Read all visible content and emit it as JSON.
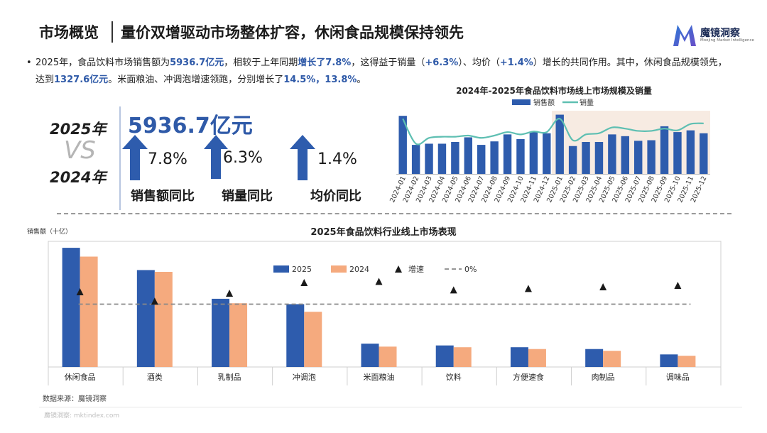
{
  "header": {
    "title": "市场概览",
    "subtitle": "量价双增驱动市场整体扩容，休闲食品规模保持领先",
    "logo_name": "魔镜洞察",
    "logo_sub": "Moojing Market Intelligence"
  },
  "summary": {
    "bullet": "•",
    "parts": [
      {
        "t": "2025年，食品饮料市场销售额为",
        "hl": false
      },
      {
        "t": "5936.7亿元",
        "hl": true
      },
      {
        "t": "，相较于上年同期",
        "hl": false
      },
      {
        "t": "增长了7.8%",
        "hl": true
      },
      {
        "t": "，这得益于销量（",
        "hl": false
      },
      {
        "t": "+6.3%",
        "hl": true
      },
      {
        "t": "）、均价（",
        "hl": false
      },
      {
        "t": "+1.4%",
        "hl": true
      },
      {
        "t": "）增长的共同作用。其中，休闲食品规模领先，达到",
        "hl": false
      },
      {
        "t": "1327.6亿元",
        "hl": true
      },
      {
        "t": "。米面粮油、冲调泡增速领跑，分别增长了",
        "hl": false
      },
      {
        "t": "14.5%，13.8%",
        "hl": true
      },
      {
        "t": "。",
        "hl": false
      }
    ]
  },
  "kpi": {
    "year_new": "2025年",
    "vs": "VS",
    "year_old": "2024年",
    "total_sales": "5936.7亿元",
    "colors": {
      "accent": "#2f5aa8",
      "arrow": "#2e5cad"
    },
    "items": [
      {
        "value": "7.8%",
        "label": "销售额同比"
      },
      {
        "value": "6.3%",
        "label": "销量同比"
      },
      {
        "value": "1.4%",
        "label": "均价同比"
      }
    ]
  },
  "chart_data": [
    {
      "type": "bar+line",
      "title": "2024年-2025年食品饮料市场线上市场规模及销量",
      "legend": [
        "销售额",
        "销量"
      ],
      "legend_position": "top-center",
      "highlight_range": [
        "2025-01",
        "2025-12"
      ],
      "colors": {
        "bar": "#2e5cad",
        "line": "#5ebfb2",
        "highlight": "#f7ebe2"
      },
      "categories": [
        "2024-01",
        "2024-02",
        "2024-03",
        "2024-04",
        "2024-05",
        "2024-06",
        "2024-07",
        "2024-08",
        "2024-09",
        "2024-10",
        "2024-11",
        "2024-12",
        "2025-01",
        "2025-02",
        "2025-03",
        "2025-04",
        "2025-05",
        "2025-06",
        "2025-07",
        "2025-08",
        "2025-09",
        "2025-10",
        "2025-11",
        "2025-12"
      ],
      "series": [
        {
          "name": "销售额",
          "type": "bar",
          "values": [
            100,
            50,
            52,
            52,
            55,
            63,
            50,
            56,
            68,
            60,
            72,
            70,
            102,
            48,
            55,
            55,
            68,
            65,
            57,
            58,
            82,
            72,
            75,
            70
          ]
        },
        {
          "name": "销量",
          "type": "line",
          "values": [
            95,
            52,
            62,
            64,
            64,
            66,
            62,
            66,
            72,
            68,
            73,
            72,
            95,
            58,
            68,
            70,
            80,
            78,
            74,
            74,
            78,
            75,
            86,
            87
          ]
        }
      ],
      "ylim": [
        0,
        110
      ]
    },
    {
      "type": "grouped_bar",
      "title": "2025年食品饮料行业线上市场表现",
      "ylabel": "销售额（十亿）",
      "legend": [
        "2025",
        "2024",
        "增速",
        "0%"
      ],
      "legend_position": "top-center",
      "colors": {
        "2025": "#2e5cad",
        "2024": "#f5aa7e",
        "growth": "#1a1a1a",
        "zero": "#888888"
      },
      "categories": [
        "休闲食品",
        "酒类",
        "乳制品",
        "冲调泡",
        "米面粮油",
        "饮料",
        "方便速食",
        "肉制品",
        "调味品"
      ],
      "series": [
        {
          "name": "2025",
          "values": [
            132.8,
            108,
            76,
            70,
            26,
            24,
            22,
            20,
            14
          ]
        },
        {
          "name": "2024",
          "values": [
            123,
            106,
            71,
            61.5,
            22.7,
            22,
            20,
            18,
            12.5
          ]
        },
        {
          "name": "增速",
          "type": "marker",
          "values": [
            7.9,
            1.9,
            7.0,
            13.8,
            14.5,
            9.1,
            10.0,
            11.1,
            12.0
          ]
        }
      ],
      "ylim": [
        0,
        140
      ],
      "growth_ylim": [
        -40,
        40
      ]
    }
  ],
  "footer": {
    "source": "数据来源：魔镜洞察",
    "watermark": "魔镜洞察: mktindex.com"
  }
}
